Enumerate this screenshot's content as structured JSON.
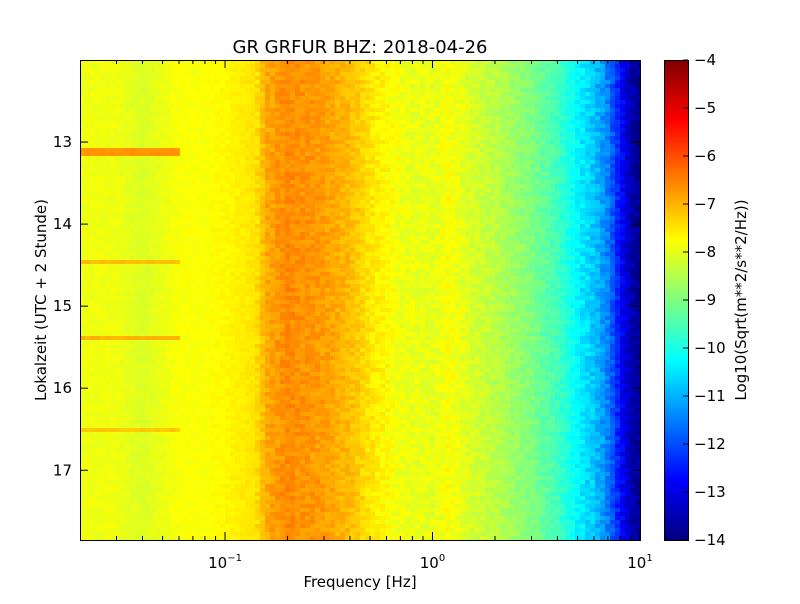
{
  "chart_data": {
    "type": "heatmap",
    "title": "GR GRFUR BHZ: 2018-04-26",
    "xlabel": "Frequency [Hz]",
    "ylabel": "Lokalzeit (UTC + 2 Stunde)",
    "colorbar_label": "Log10(Sqrt(m**2/s**2/Hz))",
    "x_scale": "log",
    "xlim": [
      0.02,
      10
    ],
    "ylim": [
      12.0,
      17.85
    ],
    "y_inverted": true,
    "clim": [
      -14,
      -4
    ],
    "colormap": "jet",
    "x_ticks": [
      {
        "value": 0.1,
        "base": "10",
        "exp": "−1"
      },
      {
        "value": 1,
        "label": "10",
        "exp": "0"
      },
      {
        "value": 10,
        "base": "10",
        "exp": "1"
      }
    ],
    "y_ticks": [
      13,
      14,
      15,
      16,
      17
    ],
    "colorbar_ticks": [
      -4,
      -5,
      -6,
      -7,
      -8,
      -9,
      -10,
      -11,
      -12,
      -13,
      -14
    ],
    "typical_spectrum": [
      {
        "f": 0.02,
        "v": -7.9
      },
      {
        "f": 0.03,
        "v": -7.9
      },
      {
        "f": 0.04,
        "v": -8.1
      },
      {
        "f": 0.06,
        "v": -7.8
      },
      {
        "f": 0.08,
        "v": -7.8
      },
      {
        "f": 0.1,
        "v": -7.7
      },
      {
        "f": 0.14,
        "v": -7.5
      },
      {
        "f": 0.16,
        "v": -6.9
      },
      {
        "f": 0.2,
        "v": -6.6
      },
      {
        "f": 0.3,
        "v": -6.8
      },
      {
        "f": 0.4,
        "v": -7.1
      },
      {
        "f": 0.5,
        "v": -7.5
      },
      {
        "f": 0.7,
        "v": -7.9
      },
      {
        "f": 1.0,
        "v": -8.0
      },
      {
        "f": 1.2,
        "v": -7.8
      },
      {
        "f": 1.5,
        "v": -8.1
      },
      {
        "f": 2.0,
        "v": -8.4
      },
      {
        "f": 3.0,
        "v": -9.0
      },
      {
        "f": 4.0,
        "v": -9.6
      },
      {
        "f": 5.0,
        "v": -10.3
      },
      {
        "f": 6.0,
        "v": -10.8
      },
      {
        "f": 7.0,
        "v": -11.5
      },
      {
        "f": 8.0,
        "v": -12.6
      },
      {
        "f": 9.0,
        "v": -13.5
      },
      {
        "f": 10.0,
        "v": -13.9
      }
    ],
    "highlighted_rows": [
      {
        "time": 13.13,
        "max_f": 0.06,
        "v": -6.7
      },
      {
        "time": 15.4,
        "max_f": 0.06,
        "v": -7.0
      },
      {
        "time": 14.45,
        "max_f": 0.06,
        "v": -7.1
      },
      {
        "time": 16.5,
        "max_f": 0.06,
        "v": -7.2
      }
    ]
  }
}
